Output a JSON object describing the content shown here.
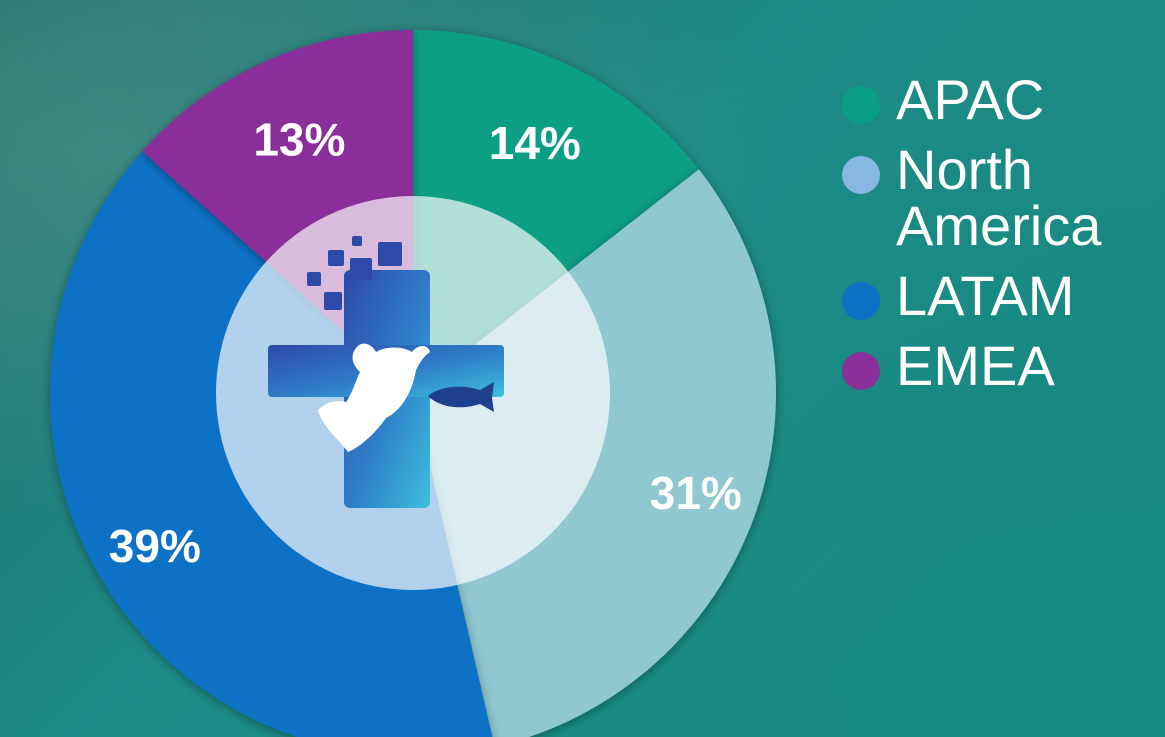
{
  "chart_data": {
    "type": "pie",
    "categories": [
      "APAC",
      "North America",
      "LATAM",
      "EMEA"
    ],
    "values": [
      14,
      31,
      39,
      13
    ],
    "labels": [
      "14%",
      "31%",
      "39%",
      "13%"
    ],
    "colors": [
      "#0a9e86",
      "#8fc8d0",
      "#0b72c6",
      "#8a2f99"
    ],
    "legend": {
      "position": "right",
      "items": [
        {
          "label": "APAC",
          "color": "#0a9e86"
        },
        {
          "label": "North America",
          "color": "#86b8e2"
        },
        {
          "label": "LATAM",
          "color": "#0b72c6"
        },
        {
          "label": "EMEA",
          "color": "#8a2f99"
        }
      ]
    }
  },
  "center_logo": {
    "icon": "veterinary-cross-icon"
  }
}
